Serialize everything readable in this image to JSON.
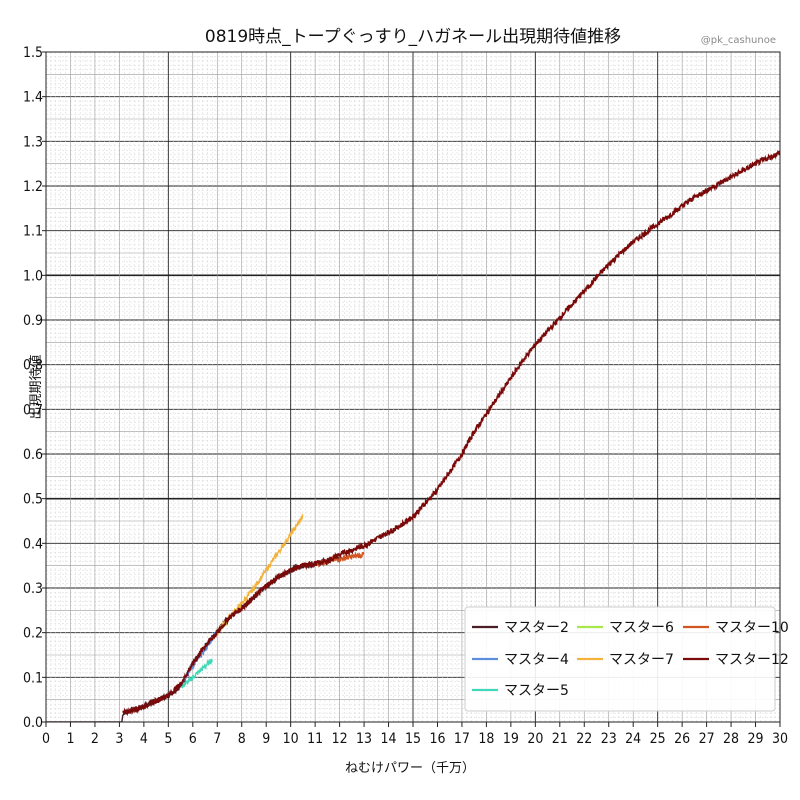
{
  "chart_data": {
    "type": "line",
    "title": "0819時点_トープぐっすり_ハガネール出現期待値推移",
    "credit": "@pk_cashunoe",
    "xlabel": "ねむけパワー（千万）",
    "ylabel": "出現期待値",
    "xlim": [
      0,
      30
    ],
    "ylim": [
      0,
      1.5
    ],
    "x_ticks": [
      "0",
      "1",
      "2",
      "3",
      "4",
      "5",
      "6",
      "7",
      "8",
      "9",
      "10",
      "11",
      "12",
      "13",
      "14",
      "15",
      "16",
      "17",
      "18",
      "19",
      "20",
      "21",
      "22",
      "23",
      "24",
      "25",
      "26",
      "27",
      "28",
      "29",
      "30"
    ],
    "y_ticks": [
      "0.0",
      "0.1",
      "0.2",
      "0.3",
      "0.4",
      "0.5",
      "0.6",
      "0.7",
      "0.8",
      "0.9",
      "1.0",
      "1.1",
      "1.2",
      "1.3",
      "1.4",
      "1.5"
    ],
    "grid": true,
    "legend_position": "lower-right",
    "series": [
      {
        "name": "マスター2",
        "color": "#4a1c26",
        "points": [
          [
            0,
            0
          ],
          [
            3.1,
            0
          ],
          [
            3.15,
            0.02
          ],
          [
            4,
            0.035
          ],
          [
            5,
            0.06
          ],
          [
            5.5,
            0.08
          ],
          [
            6,
            0.13
          ],
          [
            6.5,
            0.17
          ],
          [
            7,
            0.205
          ],
          [
            7.5,
            0.235
          ],
          [
            8,
            0.255
          ],
          [
            8.5,
            0.28
          ],
          [
            9,
            0.305
          ],
          [
            9.5,
            0.325
          ],
          [
            10,
            0.34
          ],
          [
            10.5,
            0.35
          ],
          [
            11,
            0.355
          ],
          [
            11.5,
            0.36
          ],
          [
            12,
            0.37
          ]
        ]
      },
      {
        "name": "マスター4",
        "color": "#5b8fdc",
        "points": [
          [
            5.55,
            0.09
          ],
          [
            5.8,
            0.11
          ],
          [
            6.2,
            0.14
          ],
          [
            6.6,
            0.17
          ],
          [
            7,
            0.205
          ],
          [
            7.3,
            0.22
          ]
        ]
      },
      {
        "name": "マスター5",
        "color": "#40d8b8",
        "points": [
          [
            5.55,
            0.08
          ],
          [
            5.8,
            0.09
          ],
          [
            6.1,
            0.105
          ],
          [
            6.4,
            0.12
          ],
          [
            6.8,
            0.14
          ]
        ]
      },
      {
        "name": "マスター6",
        "color": "#a8e84a",
        "points": [
          [
            7,
            0.205
          ],
          [
            7.2,
            0.215
          ],
          [
            7.4,
            0.225
          ]
        ]
      },
      {
        "name": "マスター7",
        "color": "#f2b23c",
        "points": [
          [
            7,
            0.2
          ],
          [
            7.5,
            0.235
          ],
          [
            8,
            0.265
          ],
          [
            8.5,
            0.3
          ],
          [
            9,
            0.34
          ],
          [
            9.5,
            0.38
          ],
          [
            10,
            0.42
          ],
          [
            10.5,
            0.46
          ]
        ]
      },
      {
        "name": "マスター10",
        "color": "#d2541e",
        "points": [
          [
            11,
            0.355
          ],
          [
            11.5,
            0.36
          ],
          [
            12,
            0.365
          ],
          [
            12.5,
            0.37
          ],
          [
            13,
            0.375
          ]
        ]
      },
      {
        "name": "マスター12",
        "color": "#7a0a0a",
        "points": [
          [
            3.15,
            0.02
          ],
          [
            4,
            0.035
          ],
          [
            5,
            0.06
          ],
          [
            5.5,
            0.085
          ],
          [
            6,
            0.13
          ],
          [
            6.5,
            0.17
          ],
          [
            7,
            0.2
          ],
          [
            7.5,
            0.235
          ],
          [
            8,
            0.255
          ],
          [
            8.5,
            0.28
          ],
          [
            9,
            0.305
          ],
          [
            9.5,
            0.325
          ],
          [
            10,
            0.34
          ],
          [
            10.5,
            0.35
          ],
          [
            11,
            0.355
          ],
          [
            11.5,
            0.36
          ],
          [
            12,
            0.375
          ],
          [
            12.5,
            0.385
          ],
          [
            13,
            0.395
          ],
          [
            13.5,
            0.41
          ],
          [
            14,
            0.425
          ],
          [
            14.5,
            0.44
          ],
          [
            15,
            0.46
          ],
          [
            15.5,
            0.49
          ],
          [
            16,
            0.52
          ],
          [
            16.5,
            0.56
          ],
          [
            17,
            0.6
          ],
          [
            17.5,
            0.65
          ],
          [
            18,
            0.69
          ],
          [
            18.5,
            0.73
          ],
          [
            19,
            0.77
          ],
          [
            19.5,
            0.81
          ],
          [
            20,
            0.845
          ],
          [
            20.5,
            0.875
          ],
          [
            21,
            0.905
          ],
          [
            21.5,
            0.935
          ],
          [
            22,
            0.965
          ],
          [
            22.5,
            0.995
          ],
          [
            23,
            1.025
          ],
          [
            23.5,
            1.05
          ],
          [
            24,
            1.075
          ],
          [
            24.5,
            1.095
          ],
          [
            25,
            1.115
          ],
          [
            25.5,
            1.135
          ],
          [
            26,
            1.155
          ],
          [
            26.5,
            1.175
          ],
          [
            27,
            1.19
          ],
          [
            27.5,
            1.205
          ],
          [
            28,
            1.22
          ],
          [
            28.5,
            1.235
          ],
          [
            29,
            1.25
          ],
          [
            29.5,
            1.262
          ],
          [
            30,
            1.275
          ]
        ]
      }
    ]
  }
}
